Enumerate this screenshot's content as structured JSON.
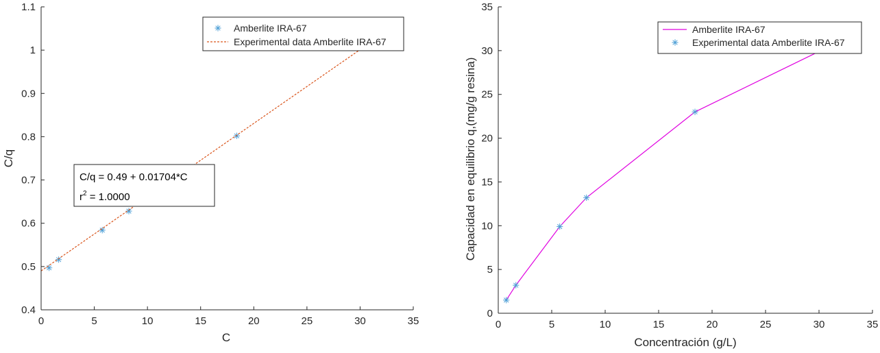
{
  "chart_data": [
    {
      "type": "line",
      "xlabel": "C",
      "ylabel": "C/q",
      "xlim": [
        0,
        35
      ],
      "ylim": [
        0.4,
        1.1
      ],
      "x_ticks": [
        "0",
        "5",
        "10",
        "15",
        "20",
        "25",
        "30",
        "35"
      ],
      "y_ticks": [
        "0.4",
        "0.5",
        "0.6",
        "0.7",
        "0.8",
        "0.9",
        "1",
        "1.1"
      ],
      "grid": false,
      "legend_position": "top-right",
      "series": [
        {
          "name": "Amberlite IRA-67",
          "style": "markers",
          "marker": "asterisk",
          "color": "#4d9fd6",
          "x": [
            0.75,
            1.65,
            5.75,
            8.25,
            18.4,
            30.5
          ],
          "y": [
            0.497,
            0.516,
            0.584,
            0.628,
            0.802,
            1.01
          ]
        },
        {
          "name": "Experimental data Amberlite IRA-67",
          "style": "dashed-line",
          "color": "#d95319",
          "x": [
            0,
            30.5
          ],
          "y": [
            0.49,
            1.0098
          ]
        }
      ],
      "annotation": {
        "line1": "C/q = 0.49 + 0.01704*C",
        "line2_prefix": "r",
        "line2_sup": "2",
        "line2_suffix": " = 1.0000"
      }
    },
    {
      "type": "line",
      "xlabel": "Concentración (g/L)",
      "ylabel": "Capacidad en equilibrio q,(mg/g resina)",
      "xlim": [
        0,
        35
      ],
      "ylim": [
        0,
        35
      ],
      "x_ticks": [
        "0",
        "5",
        "10",
        "15",
        "20",
        "25",
        "30",
        "35"
      ],
      "y_ticks": [
        "0",
        "5",
        "10",
        "15",
        "20",
        "25",
        "30",
        "35"
      ],
      "grid": false,
      "legend_position": "top-right",
      "series": [
        {
          "name": "Amberlite IRA-67",
          "style": "solid-line",
          "color": "#e000e0",
          "x": [
            0.75,
            1.65,
            5.75,
            8.25,
            18.4,
            30.5
          ],
          "y": [
            1.5,
            3.2,
            9.9,
            13.2,
            23.0,
            30.2
          ]
        },
        {
          "name": "Experimental data Amberlite IRA-67",
          "style": "markers",
          "marker": "asterisk",
          "color": "#4d9fd6",
          "x": [
            0.75,
            1.65,
            5.75,
            8.25,
            18.4,
            30.5
          ],
          "y": [
            1.5,
            3.2,
            9.9,
            13.2,
            23.0,
            30.2
          ]
        }
      ]
    }
  ]
}
